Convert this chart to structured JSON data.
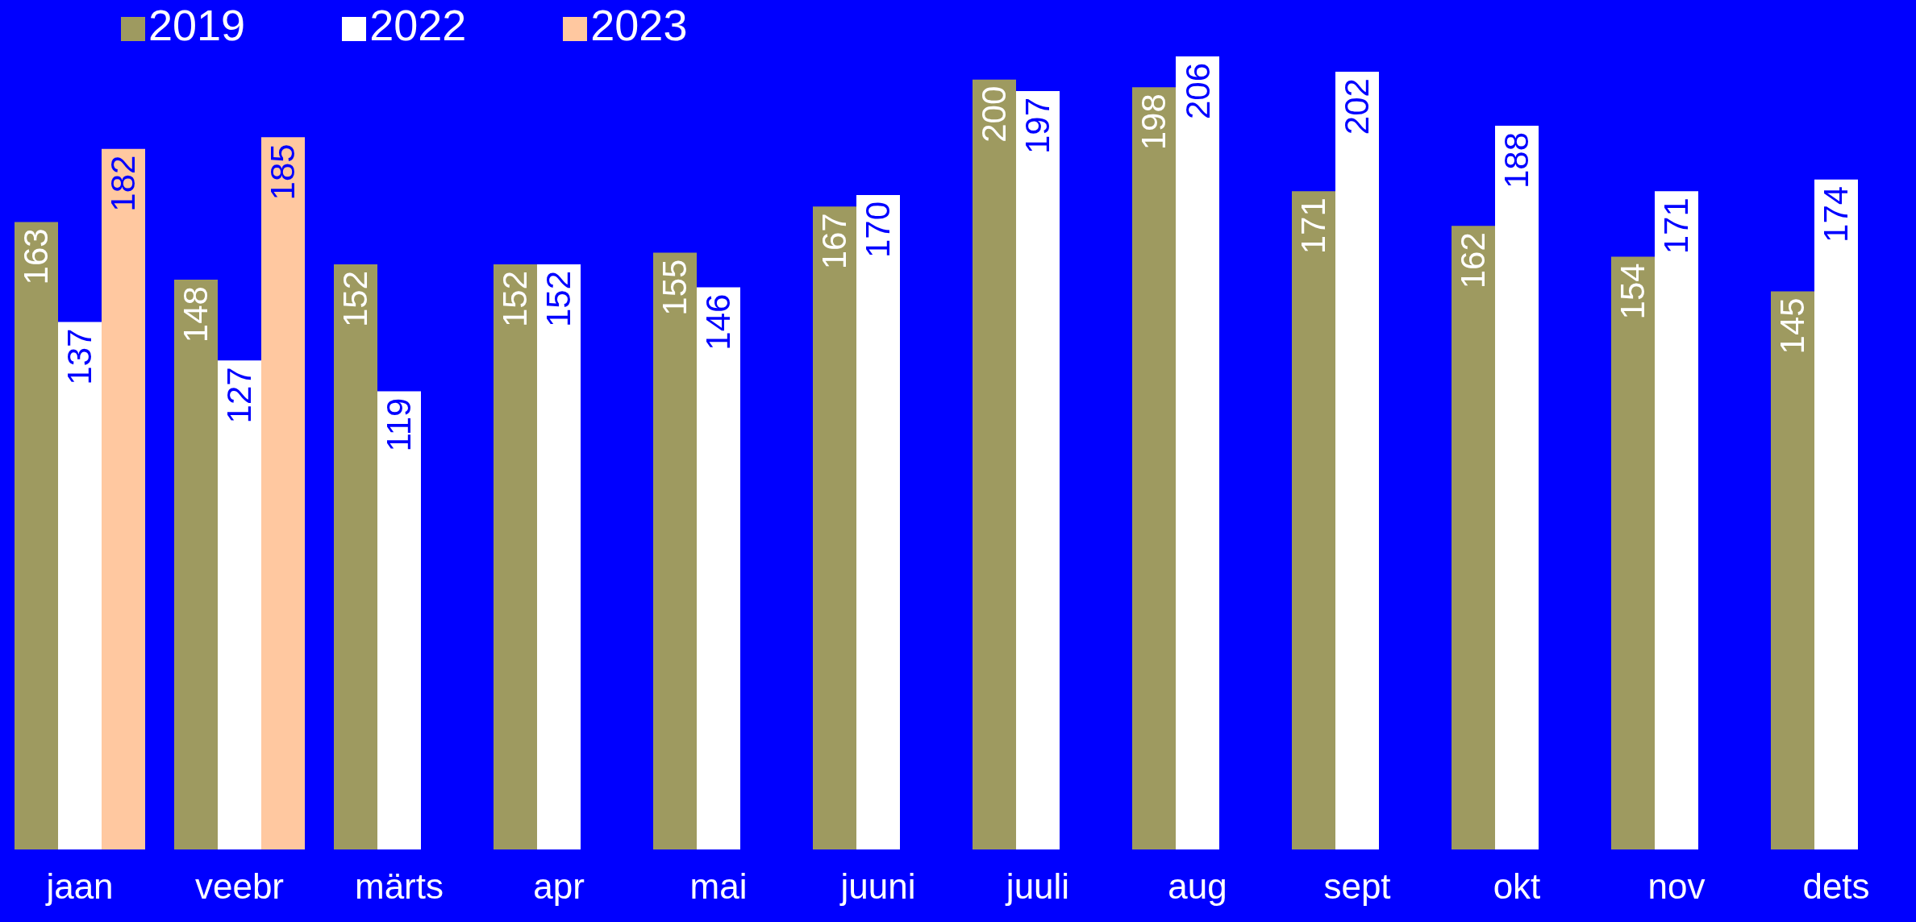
{
  "chart_data": {
    "type": "bar",
    "categories": [
      "jaan",
      "veebr",
      "märts",
      "apr",
      "mai",
      "juuni",
      "juuli",
      "aug",
      "sept",
      "okt",
      "nov",
      "dets"
    ],
    "series": [
      {
        "name": "2019",
        "color": "#9e9a60",
        "values": [
          163,
          148,
          152,
          152,
          155,
          167,
          200,
          198,
          171,
          162,
          154,
          145
        ]
      },
      {
        "name": "2022",
        "color": "#ffffff",
        "values": [
          137,
          127,
          119,
          152,
          146,
          170,
          197,
          206,
          202,
          188,
          171,
          174
        ]
      },
      {
        "name": "2023",
        "color": "#ffc8a0",
        "values": [
          182,
          185,
          null,
          null,
          null,
          null,
          null,
          null,
          null,
          null,
          null,
          null
        ]
      }
    ],
    "data_labels": true,
    "legend": "top left",
    "grid": false
  }
}
